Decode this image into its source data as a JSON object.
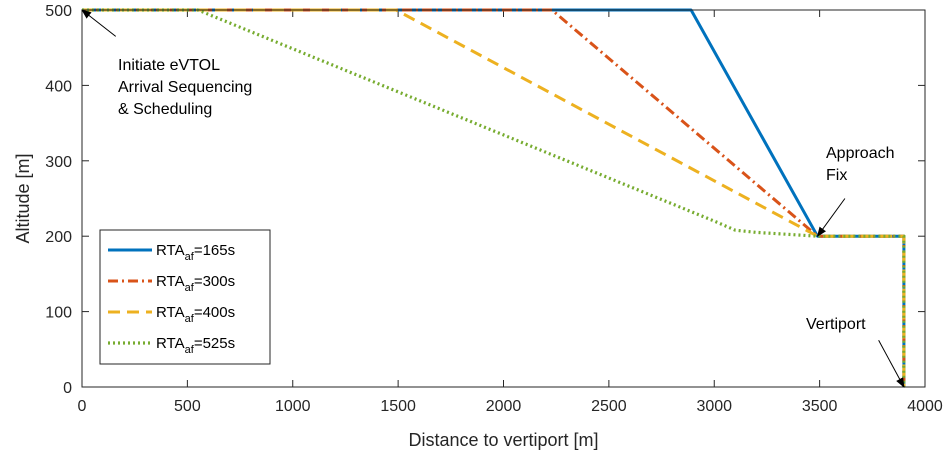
{
  "chart_data": {
    "type": "line",
    "xlabel": "Distance to vertiport [m]",
    "ylabel": "Altitude [m]",
    "xlim": [
      0,
      4000
    ],
    "ylim": [
      0,
      500
    ],
    "xticks": [
      0,
      500,
      1000,
      1500,
      2000,
      2500,
      3000,
      3500,
      4000
    ],
    "yticks": [
      0,
      100,
      200,
      300,
      400,
      500
    ],
    "grid": false,
    "legend": "bottom-left",
    "series": [
      {
        "name_main": "RTA",
        "name_sub": "af",
        "name_tail": "=165s",
        "color": "#0072BD",
        "style": "solid",
        "x": [
          0,
          2890,
          3490,
          3900,
          3900
        ],
        "y": [
          500,
          500,
          200,
          200,
          0
        ]
      },
      {
        "name_main": "RTA",
        "name_sub": "af",
        "name_tail": "=300s",
        "color": "#D95319",
        "style": "dashdot",
        "x": [
          0,
          2230,
          3490,
          3900,
          3900
        ],
        "y": [
          500,
          500,
          200,
          200,
          0
        ]
      },
      {
        "name_main": "RTA",
        "name_sub": "af",
        "name_tail": "=400s",
        "color": "#EDB120",
        "style": "dashed",
        "x": [
          0,
          1490,
          3490,
          3900,
          3900
        ],
        "y": [
          500,
          500,
          200,
          200,
          0
        ]
      },
      {
        "name_main": "RTA",
        "name_sub": "af",
        "name_tail": "=525s",
        "color": "#77AC30",
        "style": "dotted",
        "x": [
          0,
          550,
          3000,
          3100,
          3200,
          3490,
          3900,
          3900
        ],
        "y": [
          500,
          500,
          220,
          208,
          205,
          200,
          200,
          0
        ]
      }
    ],
    "annotations": [
      {
        "lines": [
          "Initiate eVTOL",
          "Arrival Sequencing",
          "& Scheduling"
        ],
        "arrow_to": [
          0,
          500
        ],
        "arrow_from": [
          160,
          465
        ]
      },
      {
        "lines": [
          "Approach",
          "Fix"
        ],
        "arrow_to": [
          3490,
          200
        ],
        "arrow_from": [
          3620,
          250
        ]
      },
      {
        "lines": [
          "Vertiport"
        ],
        "arrow_to": [
          3900,
          0
        ],
        "arrow_from": [
          3780,
          62
        ]
      }
    ]
  }
}
